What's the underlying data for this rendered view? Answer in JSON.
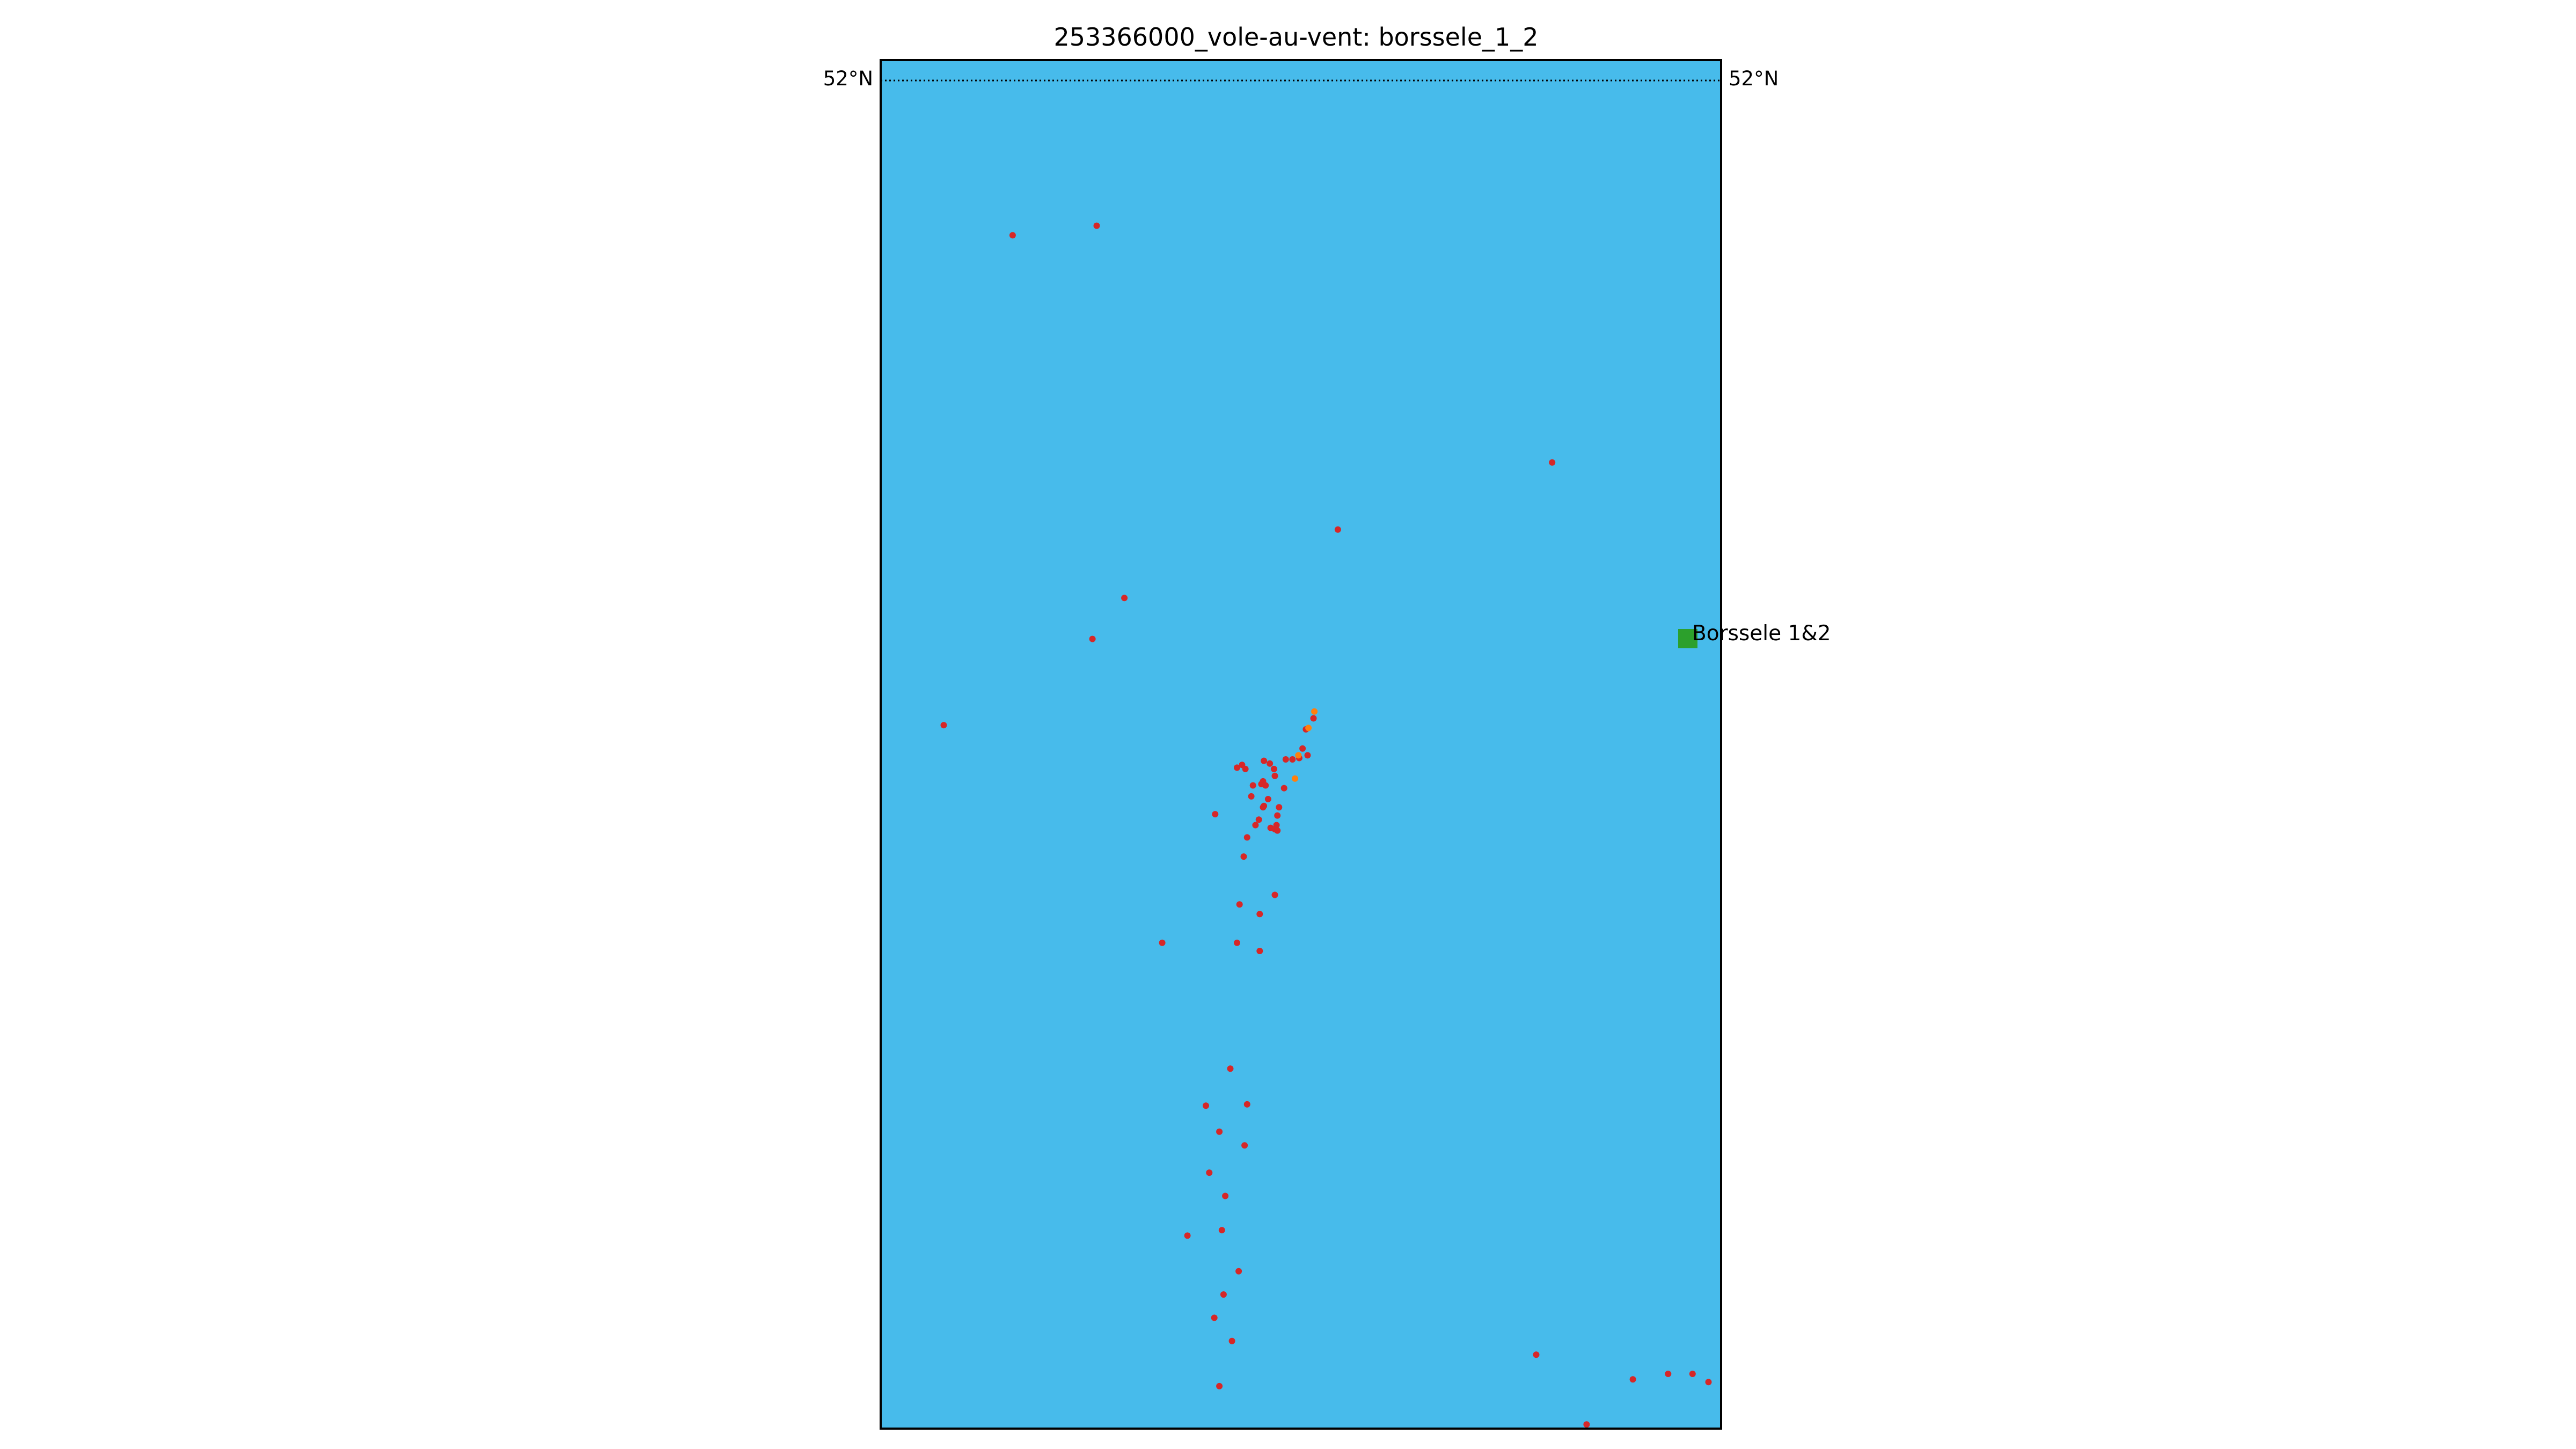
{
  "title": "253366000_vole-au-vent: borssele_1_2",
  "map": {
    "sea_color": "#47BBEB",
    "frame_color": "#000000",
    "latitude_label": "52°N",
    "graticule_style": "dotted"
  },
  "site": {
    "label": "Borssele 1&2",
    "marker": "square",
    "color": "#2CA02C"
  },
  "track": {
    "point_color": "#D62728",
    "highlight_color": "#FF7F0E",
    "note": "vessel position track points"
  },
  "points": [
    [
      0.157,
      0.128
    ],
    [
      0.257,
      0.121
    ],
    [
      0.799,
      0.294
    ],
    [
      0.544,
      0.343
    ],
    [
      0.29,
      0.393
    ],
    [
      0.252,
      0.423
    ],
    [
      0.075,
      0.486
    ],
    [
      0.515,
      0.481
    ],
    [
      0.506,
      0.489
    ],
    [
      0.502,
      0.503
    ],
    [
      0.508,
      0.508
    ],
    [
      0.498,
      0.51
    ],
    [
      0.49,
      0.511
    ],
    [
      0.482,
      0.511
    ],
    [
      0.456,
      0.512
    ],
    [
      0.463,
      0.514
    ],
    [
      0.43,
      0.515
    ],
    [
      0.424,
      0.517
    ],
    [
      0.434,
      0.518
    ],
    [
      0.468,
      0.518
    ],
    [
      0.469,
      0.523
    ],
    [
      0.455,
      0.527
    ],
    [
      0.453,
      0.529
    ],
    [
      0.458,
      0.53
    ],
    [
      0.443,
      0.53
    ],
    [
      0.48,
      0.532
    ],
    [
      0.441,
      0.538
    ],
    [
      0.461,
      0.54
    ],
    [
      0.456,
      0.545
    ],
    [
      0.455,
      0.546
    ],
    [
      0.474,
      0.546
    ],
    [
      0.398,
      0.551
    ],
    [
      0.472,
      0.552
    ],
    [
      0.45,
      0.555
    ],
    [
      0.446,
      0.559
    ],
    [
      0.471,
      0.559
    ],
    [
      0.464,
      0.561
    ],
    [
      0.469,
      0.562
    ],
    [
      0.472,
      0.563
    ],
    [
      0.436,
      0.568
    ],
    [
      0.432,
      0.582
    ],
    [
      0.469,
      0.61
    ],
    [
      0.427,
      0.617
    ],
    [
      0.451,
      0.624
    ],
    [
      0.335,
      0.645
    ],
    [
      0.424,
      0.645
    ],
    [
      0.451,
      0.651
    ],
    [
      0.416,
      0.737
    ],
    [
      0.387,
      0.764
    ],
    [
      0.436,
      0.763
    ],
    [
      0.403,
      0.783
    ],
    [
      0.433,
      0.793
    ],
    [
      0.391,
      0.813
    ],
    [
      0.41,
      0.83
    ],
    [
      0.406,
      0.855
    ],
    [
      0.365,
      0.859
    ],
    [
      0.426,
      0.885
    ],
    [
      0.408,
      0.902
    ],
    [
      0.397,
      0.919
    ],
    [
      0.418,
      0.936
    ],
    [
      0.78,
      0.946
    ],
    [
      0.895,
      0.964
    ],
    [
      0.937,
      0.96
    ],
    [
      0.966,
      0.96
    ],
    [
      0.985,
      0.966
    ],
    [
      0.403,
      0.969
    ],
    [
      0.84,
      0.997
    ]
  ],
  "highlight_points": [
    [
      0.516,
      0.476
    ],
    [
      0.509,
      0.488
    ],
    [
      0.497,
      0.508
    ],
    [
      0.493,
      0.525
    ]
  ]
}
